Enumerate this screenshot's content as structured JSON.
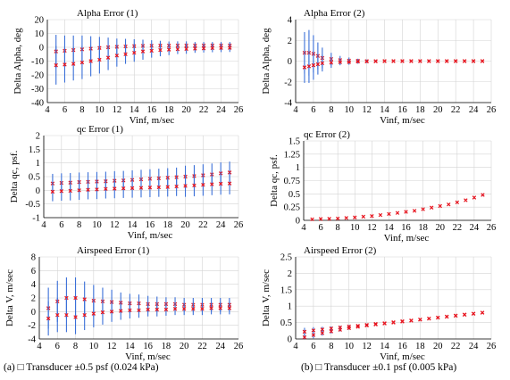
{
  "captions": {
    "left": "(a) □ Transducer ±0.5 psf (0.024 kPa)",
    "right": "(b) □ Transducer ±0.1 psf (0.005 kPa)"
  },
  "colors": {
    "errorbar": "#3a6fd8",
    "marker": "#e8141e",
    "grid": "#d4d4d4",
    "axis": "#000000"
  },
  "chart_data": [
    {
      "type": "scatter",
      "title": "Alpha Error (1)",
      "xlabel": "Vinf, m/sec",
      "ylabel": "Delta Alpha, deg",
      "xlim": [
        4,
        26
      ],
      "ylim": [
        -40,
        20
      ],
      "xticks": [
        4,
        6,
        8,
        10,
        12,
        14,
        16,
        18,
        20,
        22,
        24,
        26
      ],
      "yticks": [
        -40,
        -30,
        -20,
        -10,
        0,
        10,
        20
      ],
      "grid": true,
      "x": [
        5,
        6,
        7,
        8,
        9,
        10,
        11,
        12,
        13,
        14,
        15,
        16,
        17,
        18,
        19,
        20,
        21,
        22,
        23,
        24,
        25
      ],
      "series": [
        {
          "values": [
            -3,
            -2.5,
            -2,
            -1.5,
            -1,
            -0.5,
            0,
            0.3,
            0.6,
            0.8,
            1,
            1.1,
            1.2,
            1.2,
            1.3,
            1.3,
            1.3,
            1.3,
            1.3,
            1.3,
            1.3
          ],
          "error": [
            12,
            11,
            10.5,
            10,
            9,
            8,
            7,
            6,
            5.5,
            5,
            4.5,
            4,
            3.5,
            3,
            3,
            3,
            2.5,
            2.5,
            2.5,
            2.5,
            2.5
          ]
        },
        {
          "values": [
            -13,
            -12.5,
            -12,
            -11,
            -10,
            -9,
            -7.5,
            -6,
            -5,
            -4,
            -3,
            -2.5,
            -2,
            -1.7,
            -1.4,
            -1.2,
            -1,
            -0.8,
            -0.6,
            -0.5,
            -0.4
          ],
          "error": [
            14,
            13,
            12,
            12,
            11,
            10,
            9,
            8,
            7,
            6.5,
            6,
            5,
            4.5,
            4,
            3.5,
            3.5,
            3,
            3,
            3,
            3,
            3
          ]
        }
      ]
    },
    {
      "type": "scatter",
      "title": "Alpha Error (2)",
      "xlabel": "Vinf, m/sec",
      "ylabel": "Delta Alpha, deg",
      "xlim": [
        4,
        26
      ],
      "ylim": [
        -4,
        4
      ],
      "xticks": [
        4,
        6,
        8,
        10,
        12,
        14,
        16,
        18,
        20,
        22,
        24,
        26
      ],
      "yticks": [
        -4,
        -2,
        0,
        2,
        4
      ],
      "grid": true,
      "x": [
        5,
        5.5,
        6,
        6.5,
        7,
        8,
        9,
        10,
        11,
        12,
        13,
        14,
        15,
        16,
        17,
        18,
        19,
        20,
        21,
        22,
        23,
        24,
        25
      ],
      "series": [
        {
          "values": [
            0.8,
            0.8,
            0.7,
            0.5,
            0.3,
            0.2,
            0.1,
            0.05,
            0.03,
            0,
            0,
            0,
            0,
            0,
            0,
            0,
            0,
            0,
            0,
            0,
            0,
            0,
            0
          ],
          "error": [
            2,
            2.2,
            1.8,
            1.3,
            1,
            0.6,
            0.4,
            0.3,
            0.2,
            0.15,
            0.1,
            0.08,
            0.06,
            0.05,
            0.05,
            0.05,
            0.05,
            0.05,
            0.05,
            0.05,
            0.05,
            0.05,
            0.05
          ]
        },
        {
          "values": [
            -0.6,
            -0.5,
            -0.4,
            -0.3,
            -0.2,
            -0.15,
            -0.1,
            -0.1,
            -0.05,
            -0.03,
            -0.02,
            0,
            0,
            0,
            0,
            0,
            0,
            0,
            0,
            0,
            0,
            0,
            0
          ],
          "error": [
            1.5,
            1.6,
            1.4,
            1,
            0.8,
            0.5,
            0.3,
            0.25,
            0.2,
            0.15,
            0.1,
            0.08,
            0.06,
            0.05,
            0.05,
            0.05,
            0.05,
            0.05,
            0.05,
            0.05,
            0.05,
            0.05,
            0.05
          ]
        }
      ]
    },
    {
      "type": "scatter",
      "title": "qc Error (1)",
      "xlabel": "Vinf, m/sec",
      "ylabel": "Delta qc, psf.",
      "xlim": [
        4,
        26
      ],
      "ylim": [
        -1,
        2
      ],
      "xticks": [
        4,
        6,
        8,
        10,
        12,
        14,
        16,
        18,
        20,
        22,
        24,
        26
      ],
      "yticks": [
        -1,
        -0.5,
        0,
        0.5,
        1,
        1.5,
        2
      ],
      "grid": true,
      "x": [
        5,
        6,
        7,
        8,
        9,
        10,
        11,
        12,
        13,
        14,
        15,
        16,
        17,
        18,
        19,
        20,
        21,
        22,
        23,
        24,
        25
      ],
      "series": [
        {
          "values": [
            0.25,
            0.27,
            0.28,
            0.3,
            0.31,
            0.32,
            0.33,
            0.35,
            0.36,
            0.38,
            0.4,
            0.42,
            0.44,
            0.46,
            0.48,
            0.5,
            0.52,
            0.55,
            0.58,
            0.62,
            0.65
          ],
          "error": [
            0.35,
            0.35,
            0.35,
            0.35,
            0.35,
            0.35,
            0.35,
            0.35,
            0.35,
            0.35,
            0.35,
            0.35,
            0.35,
            0.35,
            0.35,
            0.4,
            0.4,
            0.4,
            0.4,
            0.4,
            0.4
          ]
        },
        {
          "values": [
            -0.05,
            -0.03,
            -0.02,
            0,
            0.02,
            0.03,
            0.05,
            0.06,
            0.07,
            0.08,
            0.09,
            0.1,
            0.11,
            0.12,
            0.14,
            0.16,
            0.18,
            0.2,
            0.22,
            0.24,
            0.25
          ],
          "error": [
            0.35,
            0.35,
            0.35,
            0.35,
            0.35,
            0.35,
            0.35,
            0.35,
            0.35,
            0.35,
            0.35,
            0.35,
            0.35,
            0.35,
            0.35,
            0.4,
            0.4,
            0.4,
            0.4,
            0.4,
            0.4
          ]
        }
      ]
    },
    {
      "type": "scatter",
      "title": "qc Error (2)",
      "xlabel": "Vinf, m/sec",
      "ylabel": "Delta qc, psf.",
      "xlim": [
        4,
        26
      ],
      "ylim": [
        0,
        1.5
      ],
      "xticks": [
        4,
        6,
        8,
        10,
        12,
        14,
        16,
        18,
        20,
        22,
        24,
        26
      ],
      "yticks": [
        0,
        0.25,
        0.5,
        0.75,
        1,
        1.25,
        1.5
      ],
      "ytick_labels": [
        "0",
        "0.25",
        "0.5",
        "0.75",
        "1",
        "1.25",
        "1.5"
      ],
      "grid": true,
      "x": [
        5,
        6,
        7,
        8,
        9,
        10,
        11,
        12,
        13,
        14,
        15,
        16,
        17,
        18,
        19,
        20,
        21,
        22,
        23,
        24,
        25
      ],
      "series": [
        {
          "values": [
            0.02,
            0.025,
            0.03,
            0.035,
            0.045,
            0.055,
            0.07,
            0.08,
            0.1,
            0.12,
            0.14,
            0.16,
            0.18,
            0.21,
            0.24,
            0.27,
            0.3,
            0.34,
            0.38,
            0.43,
            0.48
          ],
          "error": [
            0.005,
            0.005,
            0.005,
            0.005,
            0.005,
            0.005,
            0.006,
            0.007,
            0.008,
            0.009,
            0.01,
            0.01,
            0.011,
            0.012,
            0.013,
            0.014,
            0.015,
            0.016,
            0.017,
            0.018,
            0.02
          ]
        }
      ]
    },
    {
      "type": "scatter",
      "title": "Airspeed Error (1)",
      "xlabel": "Vinf, m/sec",
      "ylabel": "Delta V, m/sec",
      "xlim": [
        4,
        26
      ],
      "ylim": [
        -4,
        8
      ],
      "xticks": [
        4,
        6,
        8,
        10,
        12,
        14,
        16,
        18,
        20,
        22,
        24,
        26
      ],
      "yticks": [
        -4,
        -2,
        0,
        2,
        4,
        6,
        8
      ],
      "grid": true,
      "x": [
        5,
        6,
        7,
        8,
        9,
        10,
        11,
        12,
        13,
        14,
        15,
        16,
        17,
        18,
        19,
        20,
        21,
        22,
        23,
        24,
        25
      ],
      "series": [
        {
          "values": [
            0.5,
            1.5,
            2,
            2,
            1.8,
            1.6,
            1.5,
            1.4,
            1.3,
            1.2,
            1.2,
            1.1,
            1.1,
            1.1,
            1.1,
            1,
            1,
            1,
            1,
            1,
            1
          ],
          "error": [
            3,
            3,
            3,
            3,
            2.6,
            2.3,
            2,
            1.8,
            1.5,
            1.4,
            1.3,
            1.2,
            1.1,
            1,
            1,
            1,
            1,
            1,
            1,
            1,
            1
          ]
        },
        {
          "values": [
            -1,
            -0.5,
            -0.5,
            -0.8,
            -0.5,
            -0.3,
            -0.1,
            0,
            0.1,
            0.2,
            0.2,
            0.3,
            0.3,
            0.3,
            0.4,
            0.4,
            0.4,
            0.4,
            0.5,
            0.5,
            0.5
          ],
          "error": [
            2.5,
            2.5,
            2.5,
            2.5,
            2.2,
            2,
            1.8,
            1.5,
            1.3,
            1.2,
            1.1,
            1,
            1,
            0.9,
            0.9,
            0.9,
            0.9,
            0.9,
            0.9,
            0.9,
            0.9
          ]
        }
      ]
    },
    {
      "type": "scatter",
      "title": "Airspeed Error  (2)",
      "xlabel": "Vinf, m/sec",
      "ylabel": "Delta V, m/sec",
      "xlim": [
        4,
        26
      ],
      "ylim": [
        0,
        2.5
      ],
      "xticks": [
        4,
        6,
        8,
        10,
        12,
        14,
        16,
        18,
        20,
        22,
        24,
        26
      ],
      "yticks": [
        0,
        0.5,
        1,
        1.5,
        2,
        2.5
      ],
      "grid": true,
      "x": [
        5,
        6,
        7,
        8,
        9,
        10,
        11,
        12,
        13,
        14,
        15,
        16,
        17,
        18,
        19,
        20,
        21,
        22,
        23,
        24,
        25
      ],
      "series": [
        {
          "values": [
            0.22,
            0.26,
            0.29,
            0.32,
            0.35,
            0.38,
            0.4,
            0.43,
            0.46,
            0.48,
            0.51,
            0.54,
            0.56,
            0.59,
            0.62,
            0.65,
            0.68,
            0.71,
            0.74,
            0.77,
            0.8
          ],
          "error": [
            0.12,
            0.1,
            0.08,
            0.06,
            0.05,
            0.04,
            0.03,
            0.03,
            0.02,
            0.02,
            0.02,
            0.02,
            0.02,
            0.02,
            0.02,
            0.02,
            0.02,
            0.02,
            0.02,
            0.02,
            0.02
          ]
        },
        {
          "values": [
            0.05,
            0.12,
            0.18,
            0.23,
            0.28,
            0.33,
            0.37,
            0.41,
            0.44,
            0.47,
            0.5,
            0.53,
            0.56,
            0.59,
            0.62,
            0.65,
            0.68,
            0.71,
            0.74,
            0.77,
            0.8
          ],
          "error": [
            0.12,
            0.1,
            0.08,
            0.06,
            0.05,
            0.04,
            0.03,
            0.03,
            0.02,
            0.02,
            0.02,
            0.02,
            0.02,
            0.02,
            0.02,
            0.02,
            0.02,
            0.02,
            0.02,
            0.02,
            0.02
          ]
        }
      ]
    }
  ]
}
